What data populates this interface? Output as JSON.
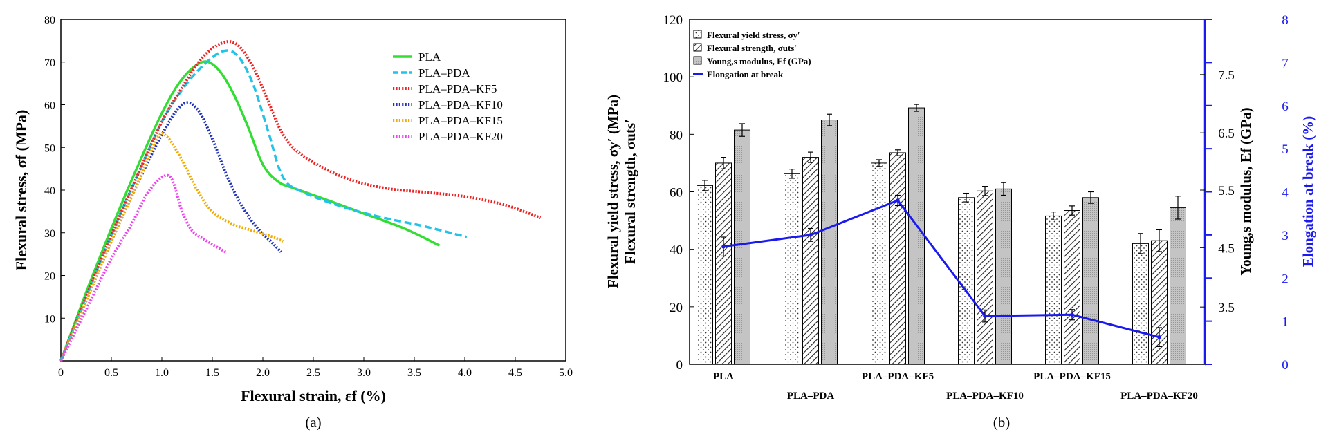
{
  "chart_data": [
    {
      "type": "line",
      "panel_label": "(a)",
      "xlabel": "Flexural strain, εf (%)",
      "ylabel": "Flexural stress, σf (MPa)",
      "xlim": [
        0,
        5.0
      ],
      "ylim": [
        0,
        80
      ],
      "xticks": [
        "0",
        "0.5",
        "1.0",
        "1.5",
        "2.0",
        "2.5",
        "3.0",
        "3.5",
        "4.0",
        "4.5",
        "5.0"
      ],
      "yticks": [
        "10",
        "20",
        "30",
        "40",
        "50",
        "60",
        "70",
        "80"
      ],
      "legend_position": "top-right",
      "series": [
        {
          "name": "PLA",
          "color": "#33dd33",
          "dash": "solid",
          "x": [
            0,
            0.25,
            0.5,
            0.75,
            1.0,
            1.2,
            1.4,
            1.55,
            1.7,
            1.85,
            2.0,
            2.15,
            2.3,
            2.6,
            3.0,
            3.4,
            3.75
          ],
          "y": [
            0,
            16,
            31,
            45,
            58,
            66,
            70,
            68.5,
            63,
            55,
            46,
            42,
            40.5,
            38,
            34.5,
            31,
            27
          ]
        },
        {
          "name": "PLA–PDA",
          "color": "#22c3e6",
          "dash": "dashed",
          "x": [
            0,
            0.25,
            0.5,
            0.75,
            1.0,
            1.2,
            1.4,
            1.6,
            1.75,
            1.9,
            2.05,
            2.2,
            2.4,
            2.8,
            3.2,
            3.6,
            4.02
          ],
          "y": [
            0,
            15,
            29.5,
            43,
            56,
            63.5,
            69,
            72.5,
            71.5,
            65,
            54,
            43,
            39.5,
            36,
            33.5,
            31.5,
            29
          ]
        },
        {
          "name": "PLA–PDA–KF5",
          "color": "#ee2222",
          "dash": "dotted",
          "x": [
            0,
            0.25,
            0.5,
            0.75,
            1.0,
            1.2,
            1.4,
            1.6,
            1.75,
            1.9,
            2.05,
            2.2,
            2.4,
            2.8,
            3.2,
            3.6,
            4.0,
            4.4,
            4.75
          ],
          "y": [
            0,
            15,
            29.5,
            43,
            56,
            64,
            71,
            74.5,
            74,
            69,
            61,
            53,
            48,
            43,
            40.5,
            39.5,
            38.5,
            36.5,
            33.5
          ]
        },
        {
          "name": "PLA–PDA–KF10",
          "color": "#2233bb",
          "dash": "dotted",
          "x": [
            0,
            0.25,
            0.5,
            0.75,
            1.0,
            1.2,
            1.35,
            1.5,
            1.65,
            1.8,
            1.95,
            2.1,
            2.18
          ],
          "y": [
            0,
            14,
            28,
            41,
            53,
            60,
            59,
            52,
            43,
            36,
            31,
            27.5,
            25.5
          ]
        },
        {
          "name": "PLA–PDA–KF15",
          "color": "#f0aa00",
          "dash": "dotted",
          "x": [
            0,
            0.25,
            0.5,
            0.75,
            0.95,
            1.05,
            1.2,
            1.35,
            1.5,
            1.7,
            1.9,
            2.1,
            2.2
          ],
          "y": [
            0,
            14,
            28,
            41,
            52,
            52.5,
            47,
            40,
            35,
            32,
            30.5,
            29,
            28
          ]
        },
        {
          "name": "PLA–PDA–KF20",
          "color": "#ee44ee",
          "dash": "dotted",
          "x": [
            0,
            0.25,
            0.5,
            0.7,
            0.85,
            1.0,
            1.1,
            1.2,
            1.3,
            1.45,
            1.63
          ],
          "y": [
            0,
            12,
            24,
            32,
            39,
            43,
            42.5,
            35,
            30.5,
            28,
            25.5
          ]
        }
      ]
    },
    {
      "type": "bar",
      "panel_label": "(b)",
      "categories": [
        "PLA",
        "PLA–PDA",
        "PLA–PDA–KF5",
        "PLA–PDA–KF10",
        "PLA–PDA–KF15",
        "PLA–PDA–KF20"
      ],
      "ylabel_left_line1": "Flexural yield stress, σy′ (MPa)",
      "ylabel_left_line2": "Flexural strength, σuts′",
      "ylabel_right1": "Young,s modulus, Ef (GPa)",
      "ylabel_right2": "Elongation at break (%)",
      "ylim_left": [
        0,
        120
      ],
      "ylim_right2": [
        0,
        8
      ],
      "yticks_left": [
        "0",
        "20",
        "40",
        "60",
        "80",
        "100",
        "120"
      ],
      "yticks_right1": [
        "3.5",
        "4.5",
        "5.5",
        "6.5",
        "7.5"
      ],
      "yticks_right2": [
        "0",
        "1",
        "2",
        "3",
        "4",
        "5",
        "6",
        "7",
        "8"
      ],
      "legend_position": "top-left",
      "legend": [
        "Flexural yield stress, σy′",
        "Flexural strength, σuts′",
        "Young,s modulus, Ef (GPa)",
        "Elongation at break"
      ],
      "series": [
        {
          "name": "Flexural yield stress, σy′",
          "values": [
            62.2,
            66.3,
            70.0,
            58.0,
            51.6,
            42.0
          ],
          "errors": [
            1.8,
            1.6,
            1.2,
            1.5,
            1.4,
            3.5
          ]
        },
        {
          "name": "Flexural strength, σuts′",
          "values": [
            70.0,
            72.0,
            73.6,
            60.3,
            53.5,
            43.0
          ],
          "errors": [
            2.0,
            1.8,
            1.0,
            1.6,
            1.6,
            3.8
          ]
        },
        {
          "name": "Young,s modulus, Ef (GPa)",
          "values": [
            81.5,
            85.0,
            89.2,
            61.0,
            58.0,
            54.5
          ],
          "errors": [
            2.2,
            2.0,
            1.2,
            2.2,
            2.0,
            4.0
          ]
        },
        {
          "name": "Elongation at break",
          "values": [
            2.73,
            3.0,
            3.8,
            1.12,
            1.15,
            0.63
          ],
          "errors": [
            0.22,
            0.15,
            0.12,
            0.14,
            0.12,
            0.22
          ]
        }
      ]
    }
  ]
}
